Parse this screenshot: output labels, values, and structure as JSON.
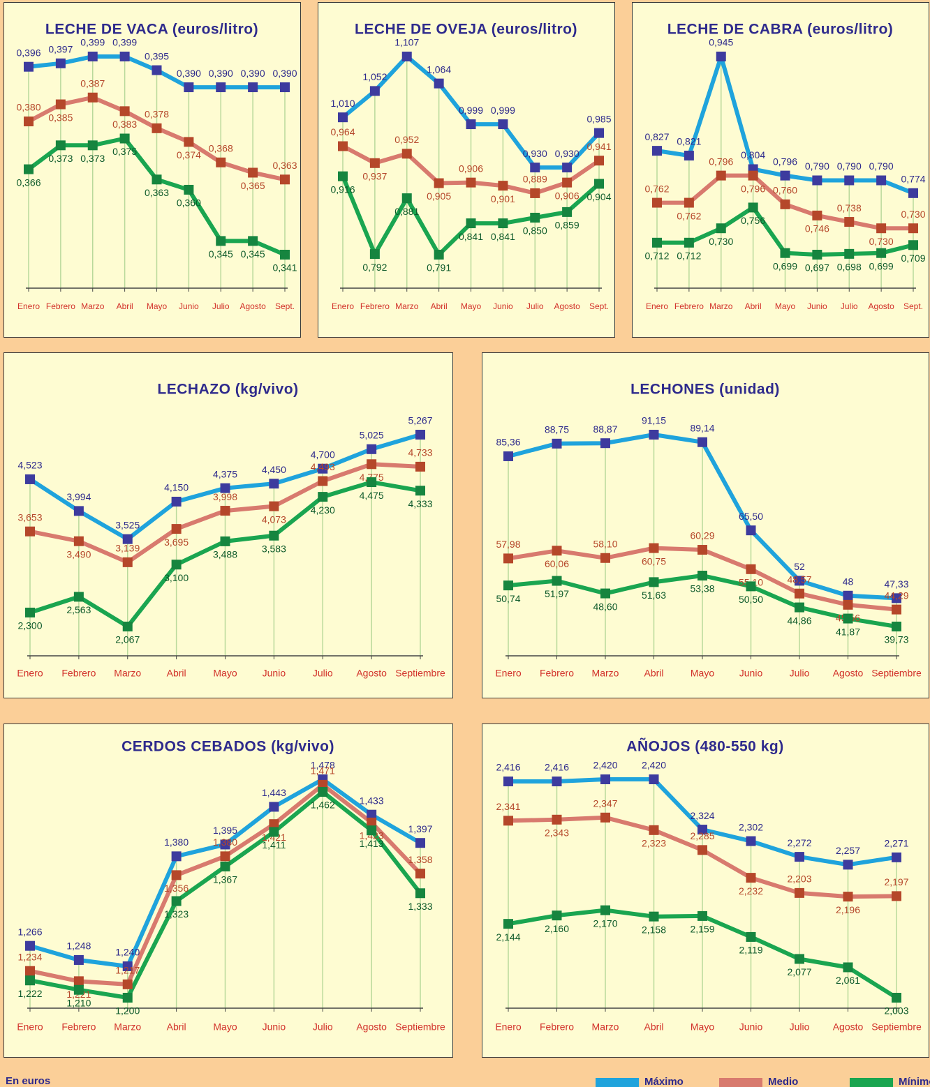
{
  "chart_data": [
    {
      "type": "line",
      "title": "LECHE DE VACA (euros/litro)",
      "categories": [
        "Enero",
        "Febrero",
        "Marzo",
        "Abril",
        "Mayo",
        "Junio",
        "Julio",
        "Agosto",
        "Sept."
      ],
      "series": [
        {
          "name": "Máximo",
          "color": "#1fa3dc",
          "marker_color": "#3d3b9e",
          "label_color": "#2e2a8c",
          "values": [
            0.396,
            0.397,
            0.399,
            0.399,
            0.395,
            0.39,
            0.39,
            0.39,
            0.39
          ],
          "value_labels": [
            "0,396",
            "0,397",
            "0,399",
            "0,399",
            "0,395",
            "0,390",
            "0,390",
            "0,390",
            "0,390"
          ]
        },
        {
          "name": "Medio",
          "color": "#d87a6e",
          "marker_color": "#b5472a",
          "label_color": "#b5472a",
          "values": [
            0.38,
            0.385,
            0.387,
            0.383,
            0.378,
            0.374,
            0.368,
            0.365,
            0.363
          ],
          "value_labels": [
            "0,380",
            "0,385",
            "0,387",
            "0,383",
            "0,378",
            "0,374",
            "0,368",
            "0,365",
            "0,363"
          ]
        },
        {
          "name": "Mínimo",
          "color": "#1aa550",
          "marker_color": "#16853f",
          "label_color": "#0e5a2a",
          "values": [
            0.366,
            0.373,
            0.373,
            0.375,
            0.363,
            0.36,
            0.345,
            0.345,
            0.341
          ],
          "value_labels": [
            "0,366",
            "0,373",
            "0,373",
            "0,375",
            "0,363",
            "0,360",
            "0,345",
            "0,345",
            "0,341"
          ]
        }
      ]
    },
    {
      "type": "line",
      "title": "LECHE DE OVEJA (euros/litro)",
      "categories": [
        "Enero",
        "Febrero",
        "Marzo",
        "Abril",
        "Mayo",
        "Junio",
        "Julio",
        "Agosto",
        "Sept."
      ],
      "series": [
        {
          "name": "Máximo",
          "color": "#1fa3dc",
          "marker_color": "#3d3b9e",
          "label_color": "#2e2a8c",
          "values": [
            1.01,
            1.052,
            1.107,
            1.064,
            0.999,
            0.999,
            0.93,
            0.93,
            0.985
          ],
          "value_labels": [
            "1,010",
            "1,052",
            "1,107",
            "1,064",
            "0,999",
            "0,999",
            "0,930",
            "0,930",
            "0,985"
          ]
        },
        {
          "name": "Medio",
          "color": "#d87a6e",
          "marker_color": "#b5472a",
          "label_color": "#b5472a",
          "values": [
            0.964,
            0.937,
            0.952,
            0.905,
            0.906,
            0.901,
            0.889,
            0.906,
            0.941
          ],
          "value_labels": [
            "0,964",
            "0,937",
            "0,952",
            "0,905",
            "0,906",
            "0,901",
            "0,889",
            "0,906",
            "0,941"
          ]
        },
        {
          "name": "Mínimo",
          "color": "#1aa550",
          "marker_color": "#16853f",
          "label_color": "#0e5a2a",
          "values": [
            0.916,
            0.792,
            0.881,
            0.791,
            0.841,
            0.841,
            0.85,
            0.859,
            0.904
          ],
          "value_labels": [
            "0,916",
            "0,792",
            "0,881",
            "0,791",
            "0,841",
            "0,841",
            "0,850",
            "0,859",
            "0,904"
          ]
        }
      ]
    },
    {
      "type": "line",
      "title": "LECHE DE CABRA (euros/litro)",
      "categories": [
        "Enero",
        "Febrero",
        "Marzo",
        "Abril",
        "Mayo",
        "Junio",
        "Julio",
        "Agosto",
        "Sept."
      ],
      "series": [
        {
          "name": "Máximo",
          "color": "#1fa3dc",
          "marker_color": "#3d3b9e",
          "label_color": "#2e2a8c",
          "values": [
            0.827,
            0.821,
            0.945,
            0.804,
            0.796,
            0.79,
            0.79,
            0.79,
            0.774
          ],
          "value_labels": [
            "0,827",
            "0,821",
            "0,945",
            "0,804",
            "0,796",
            "0,790",
            "0,790",
            "0,790",
            "0,774"
          ]
        },
        {
          "name": "Medio",
          "color": "#d87a6e",
          "marker_color": "#b5472a",
          "label_color": "#b5472a",
          "values": [
            0.762,
            0.762,
            0.796,
            0.796,
            0.76,
            0.746,
            0.738,
            0.73,
            0.73
          ],
          "value_labels": [
            "0,762",
            "0,762",
            "0,796",
            "0,796",
            "0,760",
            "0,746",
            "0,738",
            "0,730",
            "0,730"
          ]
        },
        {
          "name": "Mínimo",
          "color": "#1aa550",
          "marker_color": "#16853f",
          "label_color": "#0e5a2a",
          "values": [
            0.712,
            0.712,
            0.73,
            0.756,
            0.699,
            0.697,
            0.698,
            0.699,
            0.709
          ],
          "value_labels": [
            "0,712",
            "0,712",
            "0,730",
            "0,756",
            "0,699",
            "0,697",
            "0,698",
            "0,699",
            "0,709"
          ]
        }
      ]
    },
    {
      "type": "line",
      "title": "LECHAZO (kg/vivo)",
      "categories": [
        "Enero",
        "Febrero",
        "Marzo",
        "Abril",
        "Mayo",
        "Junio",
        "Julio",
        "Agosto",
        "Septiembre"
      ],
      "series": [
        {
          "name": "Máximo",
          "color": "#1fa3dc",
          "marker_color": "#3d3b9e",
          "label_color": "#2e2a8c",
          "values": [
            4.523,
            3.994,
            3.525,
            4.15,
            4.375,
            4.45,
            4.7,
            5.025,
            5.267
          ],
          "value_labels": [
            "4,523",
            "3,994",
            "3,525",
            "4,150",
            "4,375",
            "4,450",
            "4,700",
            "5,025",
            "5,267"
          ]
        },
        {
          "name": "Medio",
          "color": "#d87a6e",
          "marker_color": "#b5472a",
          "label_color": "#b5472a",
          "values": [
            3.653,
            3.49,
            3.139,
            3.695,
            3.998,
            4.073,
            4.493,
            4.775,
            4.733
          ],
          "value_labels": [
            "3,653",
            "3,490",
            "3,139",
            "3,695",
            "3,998",
            "4,073",
            "4,493",
            "4,775",
            "4,733"
          ]
        },
        {
          "name": "Mínimo",
          "color": "#1aa550",
          "marker_color": "#16853f",
          "label_color": "#0e5a2a",
          "values": [
            2.3,
            2.563,
            2.067,
            3.1,
            3.488,
            3.583,
            4.23,
            4.475,
            4.333
          ],
          "value_labels": [
            "2,300",
            "2,563",
            "2,067",
            "3,100",
            "3,488",
            "3,583",
            "4,230",
            "4,475",
            "4,333"
          ]
        }
      ]
    },
    {
      "type": "line",
      "title": "LECHONES (unidad)",
      "categories": [
        "Enero",
        "Febrero",
        "Marzo",
        "Abril",
        "Mayo",
        "Junio",
        "Julio",
        "Agosto",
        "Septiembre"
      ],
      "series": [
        {
          "name": "Máximo",
          "color": "#1fa3dc",
          "marker_color": "#3d3b9e",
          "label_color": "#2e2a8c",
          "values": [
            85.36,
            88.75,
            88.87,
            91.15,
            89.14,
            65.5,
            52,
            48,
            47.33
          ],
          "value_labels": [
            "85,36",
            "88,75",
            "88,87",
            "91,15",
            "89,14",
            "65,50",
            "52",
            "48",
            "47,33"
          ]
        },
        {
          "name": "Medio",
          "color": "#d87a6e",
          "marker_color": "#b5472a",
          "label_color": "#b5472a",
          "values": [
            57.98,
            60.06,
            58.1,
            60.75,
            60.29,
            55.1,
            48.57,
            45.56,
            44.29
          ],
          "value_labels": [
            "57,98",
            "60,06",
            "58,10",
            "60,75",
            "60,29",
            "55,10",
            "48,57",
            "45,56",
            "44,29"
          ]
        },
        {
          "name": "Mínimo",
          "color": "#1aa550",
          "marker_color": "#16853f",
          "label_color": "#0e5a2a",
          "values": [
            50.74,
            51.97,
            48.6,
            51.63,
            53.38,
            50.5,
            44.86,
            41.87,
            39.73
          ],
          "value_labels": [
            "50,74",
            "51,97",
            "48,60",
            "51,63",
            "53,38",
            "50,50",
            "44,86",
            "41,87",
            "39,73"
          ]
        }
      ]
    },
    {
      "type": "line",
      "title": "CERDOS CEBADOS (kg/vivo)",
      "categories": [
        "Enero",
        "Febrero",
        "Marzo",
        "Abril",
        "Mayo",
        "Junio",
        "Julio",
        "Agosto",
        "Septiembre"
      ],
      "series": [
        {
          "name": "Máximo",
          "color": "#1fa3dc",
          "marker_color": "#3d3b9e",
          "label_color": "#2e2a8c",
          "values": [
            1.266,
            1.248,
            1.24,
            1.38,
            1.395,
            1.443,
            1.478,
            1.433,
            1.397
          ],
          "value_labels": [
            "1,266",
            "1,248",
            "1,240",
            "1,380",
            "1,395",
            "1,443",
            "1,478",
            "1,433",
            "1,397"
          ]
        },
        {
          "name": "Medio",
          "color": "#d87a6e",
          "marker_color": "#b5472a",
          "label_color": "#b5472a",
          "values": [
            1.234,
            1.221,
            1.217,
            1.356,
            1.38,
            1.421,
            1.471,
            1.423,
            1.358
          ],
          "value_labels": [
            "1,234",
            "1,221",
            "1,217",
            "1,356",
            "1,380",
            "1,421",
            "1,471",
            "1,423",
            "1,358"
          ]
        },
        {
          "name": "Mínimo",
          "color": "#1aa550",
          "marker_color": "#16853f",
          "label_color": "#0e5a2a",
          "values": [
            1.222,
            1.21,
            1.2,
            1.323,
            1.367,
            1.411,
            1.462,
            1.413,
            1.333
          ],
          "value_labels": [
            "1,222",
            "1,210",
            "1,200",
            "1,323",
            "1,367",
            "1,411",
            "1,462",
            "1,413",
            "1,333"
          ]
        }
      ]
    },
    {
      "type": "line",
      "title": "AÑOJOS (480-550 kg)",
      "categories": [
        "Enero",
        "Febrero",
        "Marzo",
        "Abril",
        "Mayo",
        "Junio",
        "Julio",
        "Agosto",
        "Septiembre"
      ],
      "series": [
        {
          "name": "Máximo",
          "color": "#1fa3dc",
          "marker_color": "#3d3b9e",
          "label_color": "#2e2a8c",
          "values": [
            2.416,
            2.416,
            2.42,
            2.42,
            2.324,
            2.302,
            2.272,
            2.257,
            2.271
          ],
          "value_labels": [
            "2,416",
            "2,416",
            "2,420",
            "2,420",
            "2,324",
            "2,302",
            "2,272",
            "2,257",
            "2,271"
          ]
        },
        {
          "name": "Medio",
          "color": "#d87a6e",
          "marker_color": "#b5472a",
          "label_color": "#b5472a",
          "values": [
            2.341,
            2.343,
            2.347,
            2.323,
            2.285,
            2.232,
            2.203,
            2.196,
            2.197
          ],
          "value_labels": [
            "2,341",
            "2,343",
            "2,347",
            "2,323",
            "2,285",
            "2,232",
            "2,203",
            "2,196",
            "2,197"
          ]
        },
        {
          "name": "Mínimo",
          "color": "#1aa550",
          "marker_color": "#16853f",
          "label_color": "#0e5a2a",
          "values": [
            2.144,
            2.16,
            2.17,
            2.158,
            2.159,
            2.119,
            2.077,
            2.061,
            2.003
          ],
          "value_labels": [
            "2,144",
            "2,160",
            "2,170",
            "2,158",
            "2,159",
            "2,119",
            "2,077",
            "2,061",
            "2,003"
          ]
        }
      ]
    }
  ],
  "note": "En euros"
}
